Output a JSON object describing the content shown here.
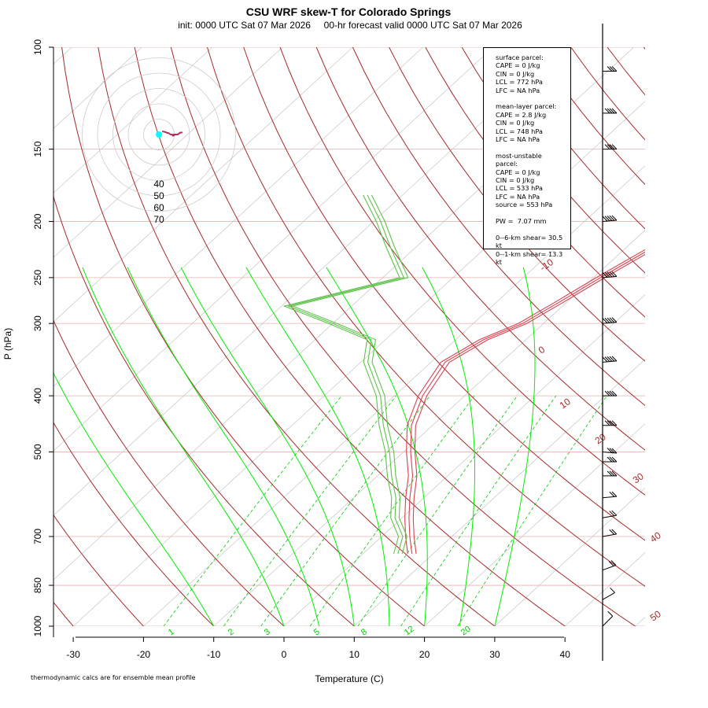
{
  "title": "CSU WRF skew-T for Colorado Springs",
  "subtitle": "init: 0000 UTC Sat 07 Mar 2026     00-hr forecast valid 0000 UTC Sat 07 Mar 2026",
  "footnote": "thermodynamic calcs are for ensemble mean profile",
  "colors": {
    "temperature": "#d9414f",
    "dewpoint": "#5dc34a",
    "dry_adiabat": "#a52a2a",
    "moist_adiabat": "#00ee00",
    "mixing_ratio": "#00cc00",
    "isotherm": "#cccccc",
    "isobar": "#e8b0b0",
    "barb": "#000000",
    "hodo_ring": "#cccccc",
    "hodo_line": "#b03060",
    "hodo_label": "#cc00cc",
    "hodo_dot": "#00ffff"
  },
  "infobox": {
    "surface_header": "surface parcel:",
    "surface": [
      "CAPE = 0 J/kg",
      "CIN = 0 J/kg",
      "LCL = 772 hPa",
      "LFC = NA hPa"
    ],
    "mean_layer_header": "mean-layer parcel:",
    "mean_layer": [
      "CAPE = 2.8 J/kg",
      "CIN = 0 J/kg",
      "LCL = 748 hPa",
      "LFC = NA hPa"
    ],
    "most_unstable_header": "most-unstable parcel:",
    "most_unstable": [
      "CAPE = 0 J/kg",
      "CIN = 0 J/kg",
      "LCL = 533 hPa",
      "LFC = NA hPa",
      "source = 553 hPa"
    ],
    "pw": "PW =  7.07 mm",
    "shear": [
      "0--6-km shear= 30.5 kt",
      "0--1-km shear= 13.3 kt"
    ]
  },
  "chart_data": {
    "type": "line",
    "subtype": "skew-T log-P sounding",
    "xlabel": "Temperature (C)",
    "ylabel": "P (hPa)",
    "xlim": [
      -33,
      45
    ],
    "ylim": [
      1000,
      100
    ],
    "y_scale": "log",
    "x_ticks": [
      -30,
      -20,
      -10,
      0,
      10,
      20,
      30,
      40
    ],
    "y_ticks": [
      100,
      150,
      200,
      250,
      300,
      400,
      500,
      700,
      850,
      1000
    ],
    "dry_adiabat_labels": [
      "-10",
      "0",
      "10",
      "20",
      "30",
      "40",
      "50"
    ],
    "mixing_ratio_labels": [
      "1",
      "2",
      "3",
      "5",
      "8",
      "12",
      "20"
    ],
    "temperature_profile": [
      [
        750,
        7
      ],
      [
        700,
        4
      ],
      [
        650,
        1
      ],
      [
        600,
        -2
      ],
      [
        550,
        -5
      ],
      [
        500,
        -9
      ],
      [
        450,
        -13
      ],
      [
        400,
        -16
      ],
      [
        350,
        -18
      ],
      [
        320,
        -16
      ],
      [
        300,
        -13
      ],
      [
        275,
        -11
      ],
      [
        250,
        -9
      ],
      [
        220,
        -6
      ],
      [
        200,
        -3
      ],
      [
        180,
        0
      ],
      [
        170,
        2
      ],
      [
        160,
        4
      ],
      [
        150,
        5
      ],
      [
        145,
        6
      ],
      [
        140,
        7
      ],
      [
        130,
        8
      ],
      [
        120,
        9
      ],
      [
        115,
        9
      ]
    ],
    "dewpoint_profile": [
      [
        750,
        5
      ],
      [
        700,
        3
      ],
      [
        650,
        -1
      ],
      [
        600,
        -4
      ],
      [
        550,
        -8
      ],
      [
        500,
        -12
      ],
      [
        450,
        -17
      ],
      [
        400,
        -22
      ],
      [
        350,
        -29
      ],
      [
        320,
        -32
      ],
      [
        300,
        -40
      ],
      [
        280,
        -49
      ],
      [
        250,
        -37
      ],
      [
        220,
        -44
      ],
      [
        200,
        -49
      ],
      [
        180,
        -55
      ]
    ],
    "hodograph_rings": [
      "40",
      "50",
      "60",
      "70"
    ],
    "wind_profile": [
      [
        1000,
        10,
        225
      ],
      [
        900,
        12,
        240
      ],
      [
        800,
        15,
        250
      ],
      [
        700,
        18,
        260
      ],
      [
        650,
        20,
        260
      ],
      [
        600,
        22,
        265
      ],
      [
        550,
        25,
        270
      ],
      [
        520,
        28,
        270
      ],
      [
        500,
        30,
        275
      ],
      [
        450,
        35,
        270
      ],
      [
        400,
        40,
        270
      ],
      [
        350,
        45,
        265
      ],
      [
        300,
        50,
        265
      ],
      [
        250,
        50,
        265
      ],
      [
        200,
        45,
        265
      ],
      [
        150,
        40,
        270
      ],
      [
        130,
        35,
        270
      ],
      [
        110,
        30,
        270
      ]
    ]
  }
}
